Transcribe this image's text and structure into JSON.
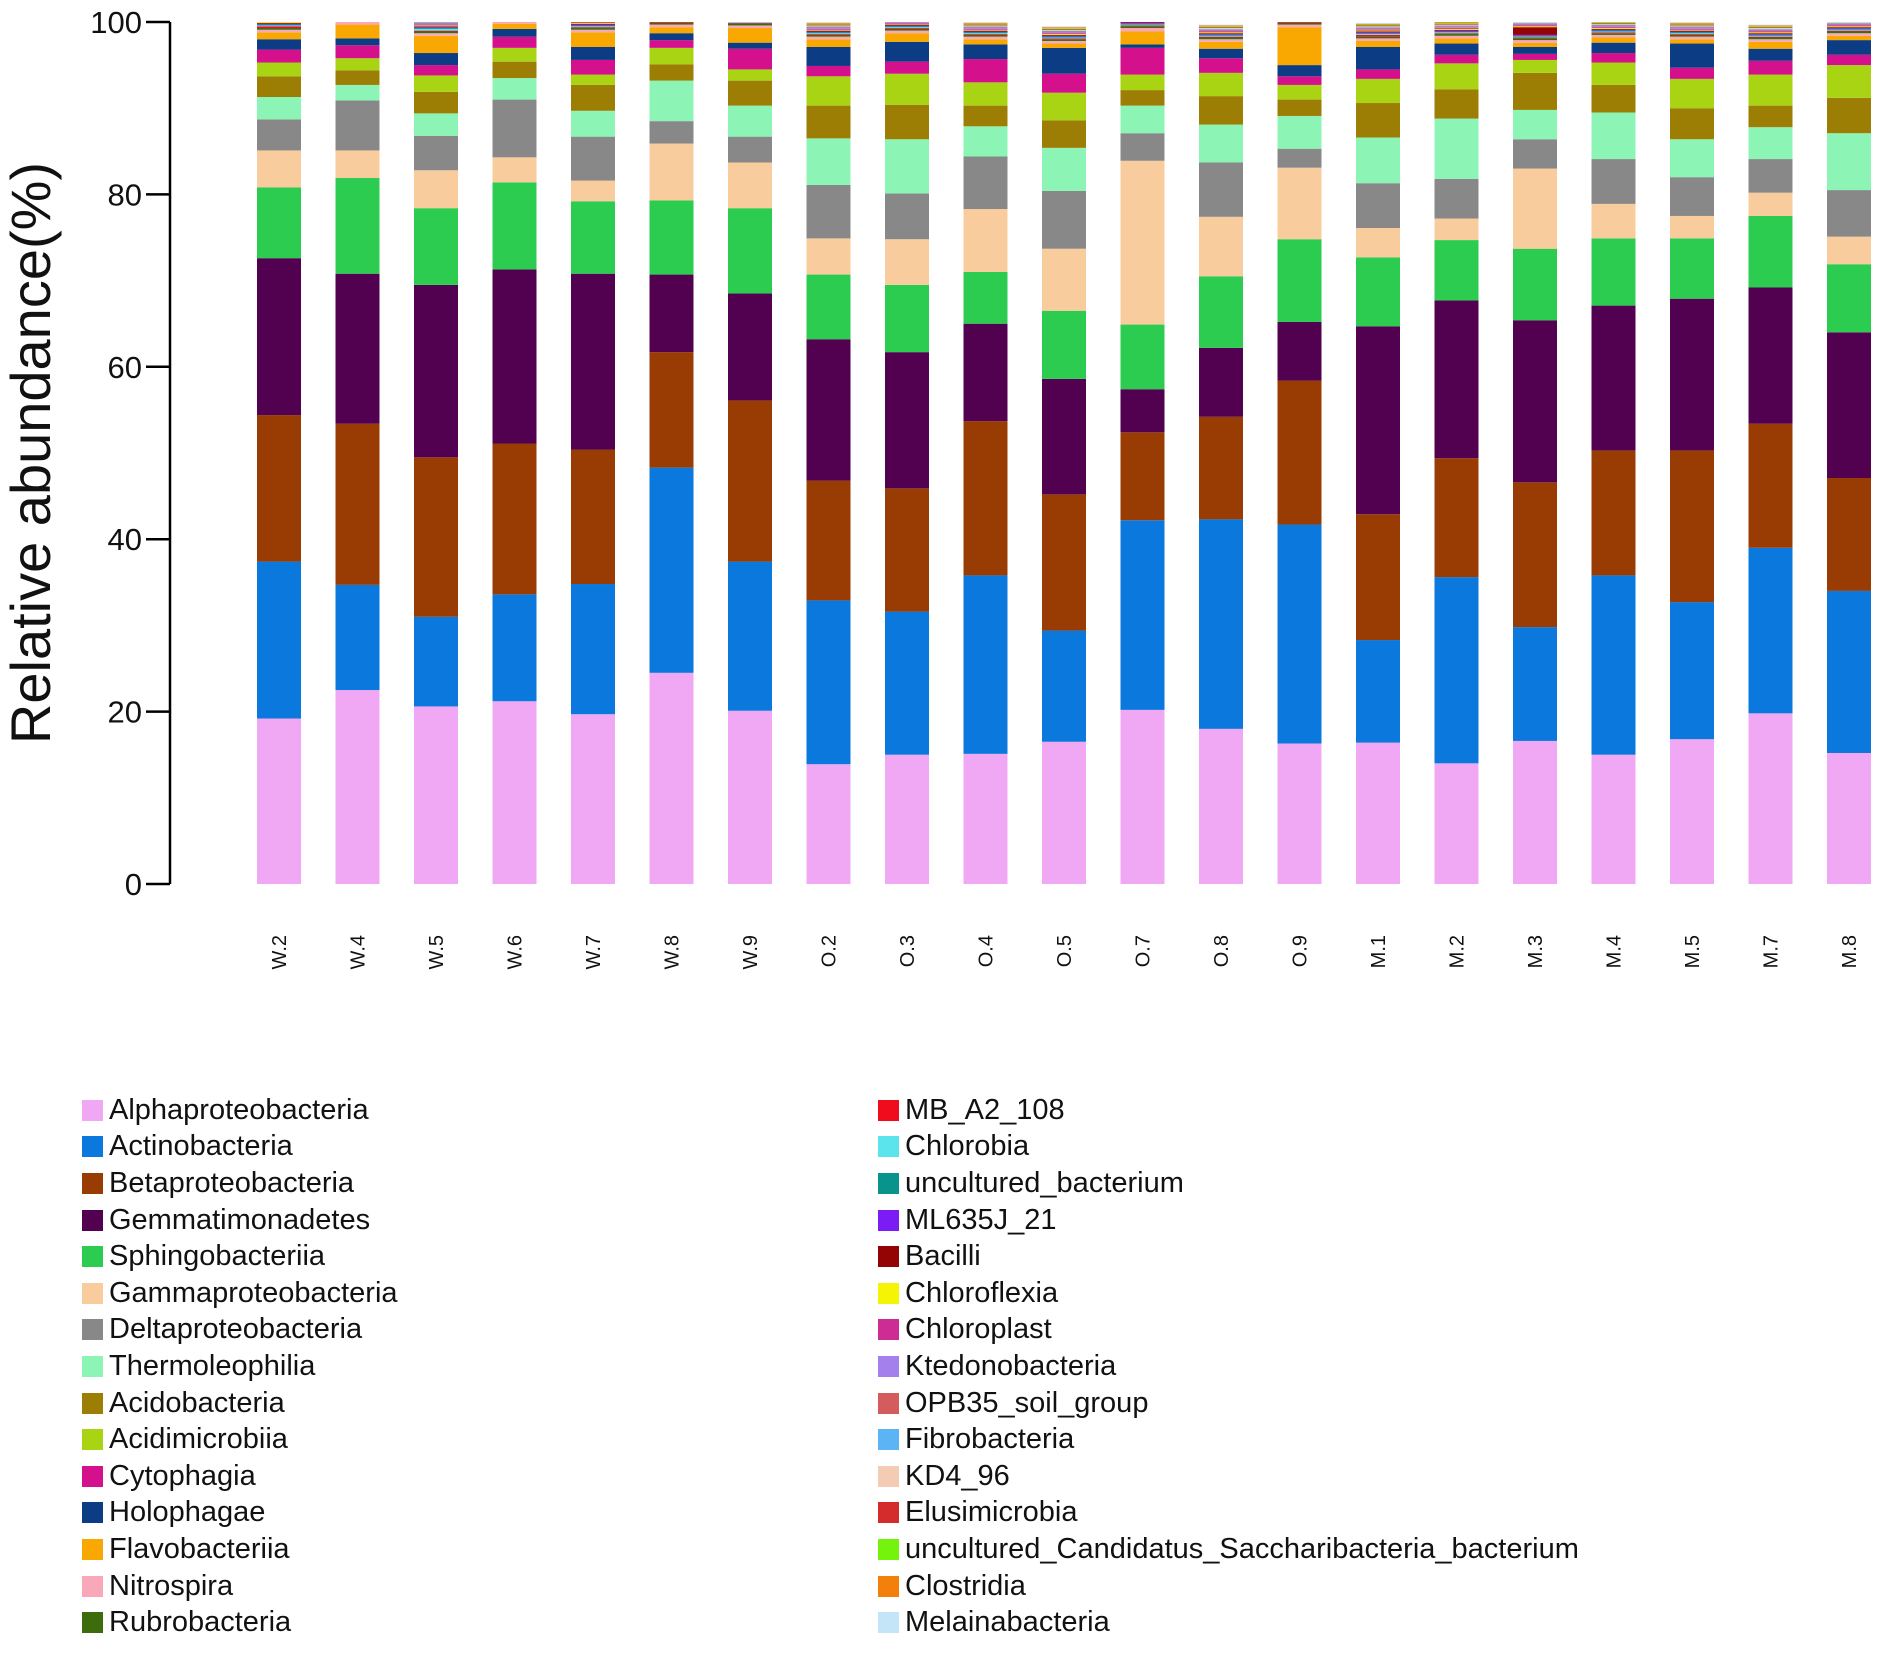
{
  "chart_data": {
    "type": "bar",
    "stacked": true,
    "ylabel": "Relative abundance(%)",
    "ylim": [
      0,
      100
    ],
    "yticks": [
      "0",
      "20",
      "40",
      "60",
      "80",
      "100"
    ],
    "categories": [
      "W.2",
      "W.4",
      "W.5",
      "W.6",
      "W.7",
      "W.8",
      "W.9",
      "O.2",
      "O.3",
      "O.4",
      "O.5",
      "O.7",
      "O.8",
      "O.9",
      "M.1",
      "M.2",
      "M.3",
      "M.4",
      "M.5",
      "M.7",
      "M.8"
    ],
    "series": [
      {
        "name": "Alphaproteobacteria",
        "color": "#f0a8f4",
        "values": [
          19.2,
          22.5,
          20.6,
          21.2,
          19.7,
          24.5,
          20.1,
          13.9,
          15,
          15.1,
          16.5,
          20.2,
          18,
          16.3,
          16.4,
          14,
          16.6,
          15,
          16.8,
          19.8,
          15.2
        ]
      },
      {
        "name": "Actinobacteria",
        "color": "#0a78dc",
        "values": [
          18.2,
          12.2,
          10.4,
          12.4,
          15.1,
          23.8,
          17.3,
          19,
          16.6,
          20.7,
          12.9,
          22,
          24.3,
          25.4,
          11.9,
          21.6,
          13.2,
          20.8,
          15.9,
          19.2,
          18.8
        ]
      },
      {
        "name": "Betaproteobacteria",
        "color": "#983c04",
        "values": [
          17,
          18.7,
          18.5,
          17.5,
          15.6,
          13.4,
          18.7,
          13.9,
          14.3,
          17.9,
          15.8,
          10.2,
          11.9,
          16.7,
          14.6,
          13.8,
          16.8,
          14.5,
          17.6,
          14.4,
          13.1
        ]
      },
      {
        "name": "Gemmatimonadetes",
        "color": "#520050",
        "values": [
          18.2,
          17.4,
          20.0,
          20.2,
          20.4,
          9.0,
          12.4,
          16.4,
          15.8,
          11.3,
          13.4,
          5.0,
          8.0,
          6.8,
          21.8,
          18.3,
          18.8,
          16.8,
          17.6,
          15.8,
          16.9
        ]
      },
      {
        "name": "Sphingobacteriia",
        "color": "#2ccc50",
        "values": [
          8.2,
          11.1,
          8.9,
          10.1,
          8.4,
          8.6,
          9.9,
          7.5,
          7.8,
          6.0,
          7.9,
          7.5,
          8.3,
          9.6,
          8.0,
          7.0,
          8.3,
          7.8,
          7.0,
          8.3,
          7.9
        ]
      },
      {
        "name": "Gammaproteobacteria",
        "color": "#f8cc9c",
        "values": [
          4.3,
          3.2,
          4.4,
          2.9,
          2.4,
          6.6,
          5.3,
          4.2,
          5.3,
          7.3,
          7.2,
          19,
          6.9,
          8.3,
          3.4,
          2.5,
          9.3,
          4.0,
          2.6,
          2.7,
          3.2
        ]
      },
      {
        "name": "Deltaproteobacteria",
        "color": "#888888",
        "values": [
          3.6,
          5.8,
          4.0,
          6.7,
          5.1,
          2.6,
          3.0,
          6.2,
          5.3,
          6.1,
          6.7,
          3.2,
          6.3,
          2.2,
          5.2,
          4.6,
          3.4,
          5.2,
          4.5,
          3.9,
          5.4
        ]
      },
      {
        "name": "Thermoleophilia",
        "color": "#8cf4b4",
        "values": [
          2.6,
          1.8,
          2.6,
          2.5,
          3.0,
          4.7,
          3.6,
          5.4,
          6.3,
          3.5,
          5.0,
          3.2,
          4.4,
          3.8,
          5.3,
          7.0,
          3.4,
          5.4,
          4.4,
          3.7,
          6.6
        ]
      },
      {
        "name": "Acidobacteria",
        "color": "#9c7e04",
        "values": [
          2.4,
          1.7,
          2.5,
          1.9,
          3.0,
          1.9,
          2.9,
          3.8,
          4.0,
          2.4,
          3.2,
          1.8,
          3.3,
          1.9,
          4.0,
          3.4,
          4.3,
          3.2,
          3.6,
          2.5,
          4.1
        ]
      },
      {
        "name": "Acidimicrobiia",
        "color": "#a8d414",
        "values": [
          1.6,
          1.4,
          1.9,
          1.6,
          1.2,
          1.9,
          1.3,
          3.4,
          3.6,
          2.7,
          3.2,
          1.8,
          2.7,
          1.7,
          2.8,
          3.0,
          1.5,
          2.6,
          3.4,
          3.6,
          3.8
        ]
      },
      {
        "name": "Cytophagia",
        "color": "#d4108c",
        "values": [
          1.5,
          1.5,
          1.2,
          1.3,
          1.7,
          0.9,
          2.4,
          1.2,
          1.4,
          2.7,
          2.2,
          3.1,
          1.7,
          1.0,
          1.1,
          1.0,
          0.7,
          1.1,
          1.3,
          1.6,
          1.2
        ]
      },
      {
        "name": "Holophagae",
        "color": "#0c3c84",
        "values": [
          1.2,
          0.8,
          1.4,
          0.9,
          1.5,
          0.8,
          0.7,
          2.2,
          2.3,
          1.7,
          3.0,
          0.4,
          1.1,
          1.3,
          2.6,
          1.3,
          0.8,
          1.2,
          2.8,
          1.4,
          1.7
        ]
      },
      {
        "name": "Flavobacteriia",
        "color": "#f8a800",
        "values": [
          0.8,
          1.6,
          2.0,
          0.6,
          1.7,
          0.7,
          1.7,
          0.9,
          1.0,
          0.6,
          0.5,
          1.5,
          0.8,
          4.4,
          0.7,
          0.6,
          0.5,
          0.6,
          0.5,
          0.8,
          0.5
        ]
      },
      {
        "name": "Nitrospira",
        "color": "#f8a8b8",
        "values": [
          0.3,
          0.3,
          0.3,
          0.3,
          0.3,
          0.3,
          0.3,
          0.3,
          0.3,
          0.3,
          0.3,
          0.4,
          0.3,
          0.3,
          0.3,
          0.3,
          0.3,
          0.3,
          0.3,
          0.3,
          0.3
        ]
      },
      {
        "name": "Rubrobacteria",
        "color": "#3c6c0c",
        "values": [
          0.2,
          0.2,
          0.2,
          0.2,
          0.2,
          0.2,
          0.2,
          0.2,
          0.2,
          0.2,
          0.2,
          0.2,
          0.2,
          0.2,
          0.2,
          0.2,
          0.2,
          0.2,
          0.2,
          0.2,
          0.2
        ]
      },
      {
        "name": "MB_A2_108",
        "color": "#f00c1c",
        "values": [
          0.2,
          0.1,
          0.1,
          0.1,
          0.1,
          0.1,
          0.1,
          0.1,
          0.1,
          0.1,
          0.1,
          0.1,
          0.1,
          0.1,
          0.2,
          0.1,
          0.1,
          0.1,
          0.1,
          0.1,
          0.1
        ]
      },
      {
        "name": "Chlorobia",
        "color": "#5ce4ec",
        "values": [
          0.1,
          0.2,
          0.2,
          0.1,
          0.1,
          0.1,
          0.1,
          0.1,
          0.1,
          0.1,
          0.1,
          0.1,
          0.1,
          0.1,
          0.1,
          0.1,
          0.1,
          0.1,
          0.1,
          0.1,
          0.1
        ]
      },
      {
        "name": "uncultured_bacterium",
        "color": "#08948c",
        "values": [
          0.1,
          0.1,
          0.1,
          0.1,
          0.1,
          0.1,
          0.1,
          0.1,
          0.1,
          0.1,
          0.1,
          0.1,
          0.1,
          0.1,
          0.1,
          0.1,
          0.1,
          0.1,
          0.1,
          0.1,
          0.1
        ]
      },
      {
        "name": "ML635J_21",
        "color": "#7c1cf4",
        "values": [
          0.1,
          0.2,
          0.1,
          0.1,
          0.1,
          0.1,
          0.1,
          0.1,
          0.1,
          0.1,
          0.1,
          0.1,
          0.1,
          0.1,
          0.1,
          0.1,
          0.1,
          0.1,
          0.1,
          0.1,
          0.1
        ]
      },
      {
        "name": "Bacilli",
        "color": "#940404",
        "values": [
          0.1,
          0.1,
          0.1,
          0.1,
          0.1,
          0.1,
          0.1,
          0.1,
          0.1,
          0.1,
          0.1,
          0.1,
          0.1,
          0.1,
          0.1,
          0.1,
          0.9,
          0.1,
          0.1,
          0.1,
          0.1
        ]
      },
      {
        "name": "Chloroflexia",
        "color": "#f4f404",
        "values": [
          0.1,
          0.1,
          0.1,
          0.1,
          0.1,
          0.1,
          0.1,
          0.1,
          0.1,
          0.1,
          0.1,
          0.1,
          0.1,
          0.1,
          0.1,
          0.1,
          0.1,
          0.1,
          0.1,
          0.1,
          0.1
        ]
      },
      {
        "name": "Chloroplast",
        "color": "#cc2c94",
        "values": [
          0.1,
          0.1,
          0.1,
          0.1,
          0.1,
          0.1,
          0.1,
          0.1,
          0.1,
          0.1,
          0.1,
          0.1,
          0.1,
          0.1,
          0.1,
          0.1,
          0.1,
          0.1,
          0.1,
          0.1,
          0.1
        ]
      },
      {
        "name": "Ktedonobacteria",
        "color": "#a480ec",
        "values": [
          0.1,
          0.1,
          0.1,
          0.1,
          0.1,
          0.1,
          0.1,
          0.1,
          0.1,
          0.1,
          0.1,
          0.1,
          0.1,
          0.1,
          0.1,
          0.1,
          0.1,
          0.1,
          0.1,
          0.1,
          0.1
        ]
      },
      {
        "name": "OPB35_soil_group",
        "color": "#d45c5c",
        "values": [
          0.1,
          0.1,
          0.1,
          0.1,
          0.1,
          0.1,
          0.1,
          0.1,
          0.1,
          0.1,
          0.1,
          0.1,
          0.1,
          0.1,
          0.1,
          0.1,
          0.1,
          0.1,
          0.1,
          0.1,
          0.1
        ]
      },
      {
        "name": "Fibrobacteria",
        "color": "#5cb4f4",
        "values": [
          0.1,
          0.1,
          0.1,
          0.1,
          0.1,
          0.1,
          0.1,
          0.1,
          0.1,
          0.1,
          0.1,
          0.1,
          0.1,
          0.1,
          0.1,
          0.1,
          0.1,
          0.1,
          0.1,
          0.1,
          0.1
        ]
      },
      {
        "name": "KD4_96",
        "color": "#f4ccb4",
        "values": [
          0.1,
          0.1,
          0.1,
          0.1,
          0.1,
          0.1,
          0.1,
          0.1,
          0.1,
          0.1,
          0.1,
          0.1,
          0.1,
          0.1,
          0.1,
          0.1,
          0.1,
          0.1,
          0.1,
          0.1,
          0.1
        ]
      },
      {
        "name": "Elusimicrobia",
        "color": "#d42c2c",
        "values": [
          0.1,
          0.1,
          0.1,
          0.1,
          0.1,
          0.1,
          0.1,
          0.1,
          0.1,
          0.1,
          0.1,
          0.1,
          0.1,
          0.1,
          0.1,
          0.1,
          0.1,
          0.1,
          0.1,
          0.1,
          0.1
        ]
      },
      {
        "name": "uncultured_Candidatus_Saccharibacteria_bacterium",
        "color": "#74f40c",
        "values": [
          0.1,
          0.1,
          0.1,
          0.1,
          0.1,
          0.1,
          0.1,
          0.1,
          0.1,
          0.1,
          0.1,
          0.1,
          0.1,
          0.1,
          0.1,
          0.1,
          0.1,
          0.1,
          0.1,
          0.1,
          0.1
        ]
      },
      {
        "name": "Clostridia",
        "color": "#f4800c",
        "values": [
          0.1,
          0.1,
          0.1,
          0.1,
          0.1,
          0.1,
          0.1,
          0.1,
          0.1,
          0.1,
          0.1,
          0.1,
          0.1,
          0.1,
          0.1,
          0.1,
          0.1,
          0.1,
          0.1,
          0.1,
          0.1
        ]
      },
      {
        "name": "Melainabacteria",
        "color": "#c4e4f8",
        "values": [
          0.1,
          0.1,
          0.1,
          0.1,
          0.1,
          0.1,
          0.1,
          0.1,
          0.1,
          0.1,
          0.1,
          0.1,
          0.1,
          0.1,
          0.1,
          0.1,
          0.1,
          0.1,
          0.1,
          0.1,
          0.1
        ]
      }
    ],
    "legend_position": "bottom"
  }
}
